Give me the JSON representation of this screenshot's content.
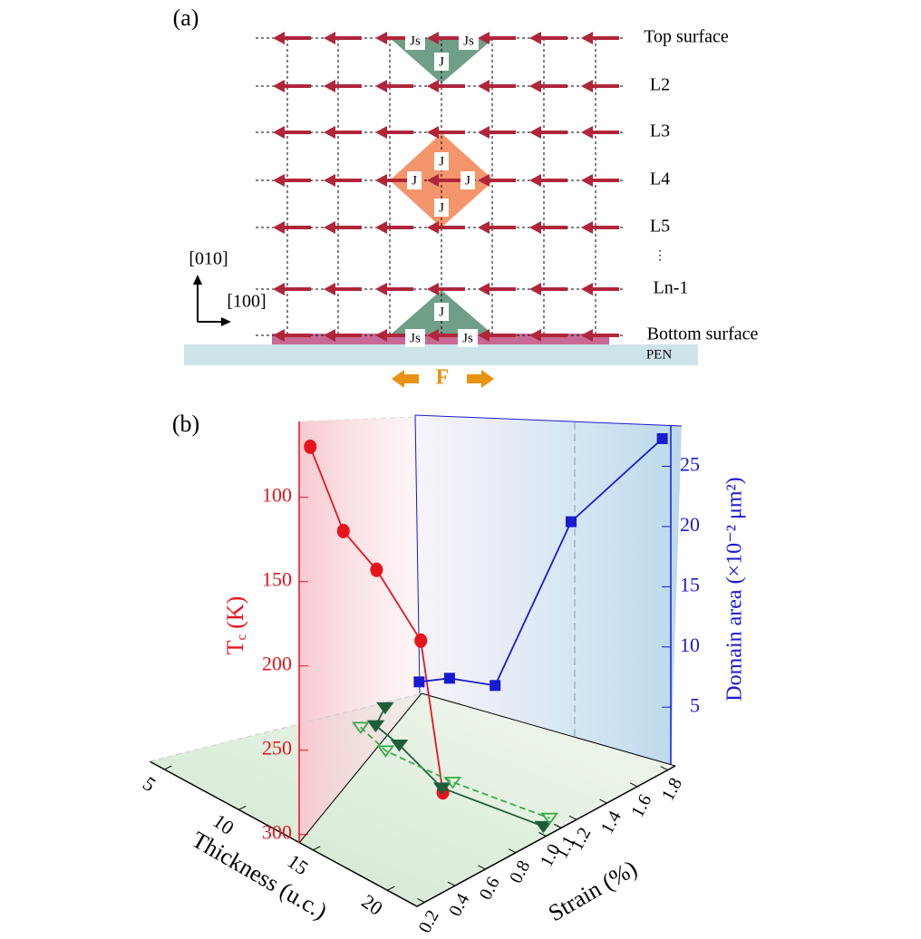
{
  "panel_a": {
    "label": "(a)",
    "layers": [
      "Top surface",
      "L2",
      "L3",
      "L4",
      "L5",
      "⋮",
      "Ln-1",
      "Bottom surface"
    ],
    "axis_up": "[010]",
    "axis_right": "[100]",
    "substrate": "PEN",
    "force": "F",
    "exchange": "J",
    "surface_exchange": "Js"
  },
  "chart_data": {
    "type": "line3d",
    "label": "(b)",
    "x_label": "Thickness (u.c.)",
    "z_label": "Strain (%)",
    "y_label": {
      "main": "T",
      "sub": "c",
      "unit": "(K)"
    },
    "y2_label": "Domain area (×10⁻² μm²)",
    "xlim": [
      4,
      22
    ],
    "xticks": [
      5,
      10,
      15,
      20
    ],
    "zlim": [
      0.15,
      1.85
    ],
    "zticks": [
      0.2,
      0.4,
      0.6,
      0.8,
      {
        "value": 1,
        "label": "1.0"
      },
      1.1,
      1.2,
      1.4,
      1.6,
      1.8
    ],
    "ylim": [
      55,
      305
    ],
    "y_inverted": true,
    "yticks": [
      100,
      150,
      200,
      250,
      300
    ],
    "y2lim": [
      0.5,
      28.5
    ],
    "y2ticks": [
      5,
      10,
      15,
      20,
      25
    ],
    "series": [
      {
        "color": "#e8141c",
        "x": [
          5,
          8,
          11,
          15,
          17
        ],
        "values": [
          70,
          120,
          143,
          185,
          275
        ]
      },
      {
        "color": "#1a1ad0",
        "axis": "y2",
        "strain": [
          0.2,
          0.4,
          0.7,
          1.2,
          1.8
        ],
        "values": [
          7.1,
          7.4,
          6.8,
          20.4,
          27.3
        ]
      },
      {
        "color": "#1e5e3a",
        "thickness": [
          8.6,
          9.4,
          11.4,
          15.5,
          21.3
        ],
        "strain": [
          1.25,
          1.11,
          1.07,
          0.95,
          1.05
        ]
      },
      {
        "color": "#3aa84a",
        "dashed": true,
        "thickness": [
          9,
          11.3,
          15.5,
          21
        ],
        "strain": [
          1.05,
          0.99,
          1.02,
          1.12
        ]
      }
    ]
  }
}
